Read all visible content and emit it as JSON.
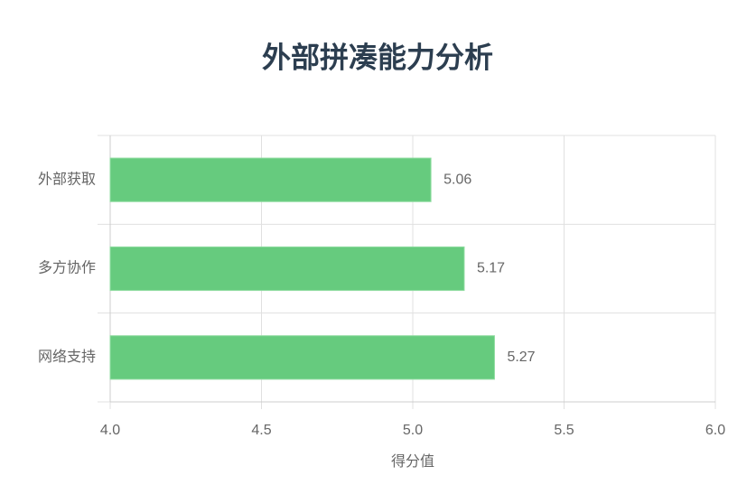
{
  "chart_data": {
    "type": "bar",
    "orientation": "horizontal",
    "title": "外部拼凑能力分析",
    "x_label": "得分值",
    "categories": [
      "外部获取",
      "多方协作",
      "网络支持"
    ],
    "values": [
      5.06,
      5.17,
      5.27
    ],
    "color": "#66cb7e",
    "xlim": [
      4,
      6
    ],
    "xticks": [
      {
        "value": 4,
        "label": "4.0"
      },
      4.5,
      {
        "value": 5,
        "label": "5.0"
      },
      5.5,
      {
        "value": 6,
        "label": "6.0"
      }
    ],
    "grid": true
  }
}
